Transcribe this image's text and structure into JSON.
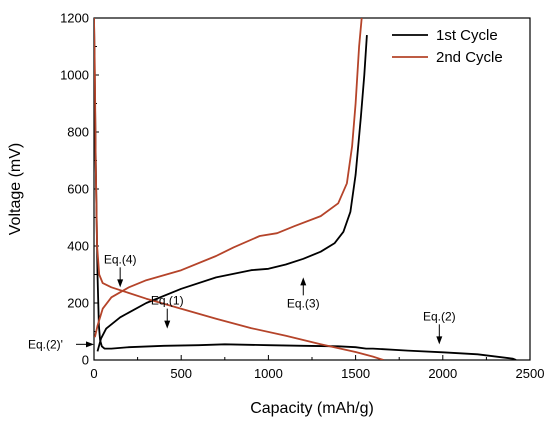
{
  "chart_data": {
    "type": "line",
    "xlabel": "Capacity (mAh/g)",
    "ylabel": "Voltage (mV)",
    "xlim": [
      0,
      2500
    ],
    "ylim": [
      0,
      1200
    ],
    "xticks": [
      0,
      500,
      1000,
      1500,
      2000,
      2500
    ],
    "yticks": [
      0,
      200,
      400,
      600,
      800,
      1000,
      1200
    ],
    "legend_position": "top-right",
    "grid": false,
    "series": [
      {
        "name": "1st Cycle",
        "color": "#000000",
        "segments": [
          [
            [
              0,
              1200
            ],
            [
              10,
              700
            ],
            [
              20,
              300
            ],
            [
              28,
              120
            ],
            [
              35,
              70
            ],
            [
              45,
              48
            ],
            [
              60,
              40
            ],
            [
              100,
              40
            ],
            [
              200,
              45
            ],
            [
              400,
              50
            ],
            [
              600,
              52
            ],
            [
              750,
              55
            ],
            [
              1000,
              52
            ],
            [
              1200,
              50
            ],
            [
              1400,
              48
            ],
            [
              1500,
              45
            ],
            [
              1560,
              40
            ],
            [
              1600,
              40
            ],
            [
              1800,
              33
            ],
            [
              2000,
              27
            ],
            [
              2200,
              20
            ],
            [
              2400,
              5
            ],
            [
              2420,
              0
            ]
          ],
          [
            [
              20,
              30
            ],
            [
              40,
              75
            ],
            [
              70,
              110
            ],
            [
              150,
              150
            ],
            [
              300,
              200
            ],
            [
              500,
              250
            ],
            [
              700,
              290
            ],
            [
              900,
              315
            ],
            [
              1000,
              320
            ],
            [
              1100,
              335
            ],
            [
              1200,
              355
            ],
            [
              1300,
              380
            ],
            [
              1380,
              410
            ],
            [
              1430,
              450
            ],
            [
              1470,
              520
            ],
            [
              1500,
              650
            ],
            [
              1530,
              850
            ],
            [
              1550,
              1000
            ],
            [
              1565,
              1140
            ]
          ]
        ]
      },
      {
        "name": "2nd Cycle",
        "color": "#b5442a",
        "segments": [
          [
            [
              0,
              1200
            ],
            [
              5,
              1000
            ],
            [
              10,
              700
            ],
            [
              18,
              400
            ],
            [
              30,
              300
            ],
            [
              50,
              270
            ],
            [
              100,
              255
            ],
            [
              200,
              235
            ],
            [
              300,
              215
            ],
            [
              500,
              180
            ],
            [
              700,
              145
            ],
            [
              900,
              112
            ],
            [
              1100,
              85
            ],
            [
              1300,
              55
            ],
            [
              1500,
              28
            ],
            [
              1600,
              12
            ],
            [
              1660,
              0
            ]
          ],
          [
            [
              5,
              80
            ],
            [
              20,
              120
            ],
            [
              50,
              180
            ],
            [
              100,
              220
            ],
            [
              200,
              255
            ],
            [
              300,
              280
            ],
            [
              500,
              315
            ],
            [
              700,
              365
            ],
            [
              800,
              395
            ],
            [
              950,
              435
            ],
            [
              1050,
              445
            ],
            [
              1150,
              470
            ],
            [
              1300,
              505
            ],
            [
              1400,
              550
            ],
            [
              1450,
              620
            ],
            [
              1480,
              750
            ],
            [
              1500,
              900
            ],
            [
              1520,
              1100
            ],
            [
              1535,
              1200
            ]
          ]
        ]
      }
    ],
    "annotations": [
      {
        "text": "Eq.(4)",
        "x": 150,
        "y": 255,
        "arrow": "down"
      },
      {
        "text": "Eq.(3)",
        "x": 1200,
        "y": 290,
        "arrow": "up"
      },
      {
        "text": "Eq.(1)",
        "x": 420,
        "y": 110,
        "arrow": "down"
      },
      {
        "text": "Eq.(2)",
        "x": 1980,
        "y": 55,
        "arrow": "down"
      },
      {
        "text": "Eq.(2)'",
        "x": 0,
        "y": 55,
        "arrow": "right"
      }
    ]
  }
}
